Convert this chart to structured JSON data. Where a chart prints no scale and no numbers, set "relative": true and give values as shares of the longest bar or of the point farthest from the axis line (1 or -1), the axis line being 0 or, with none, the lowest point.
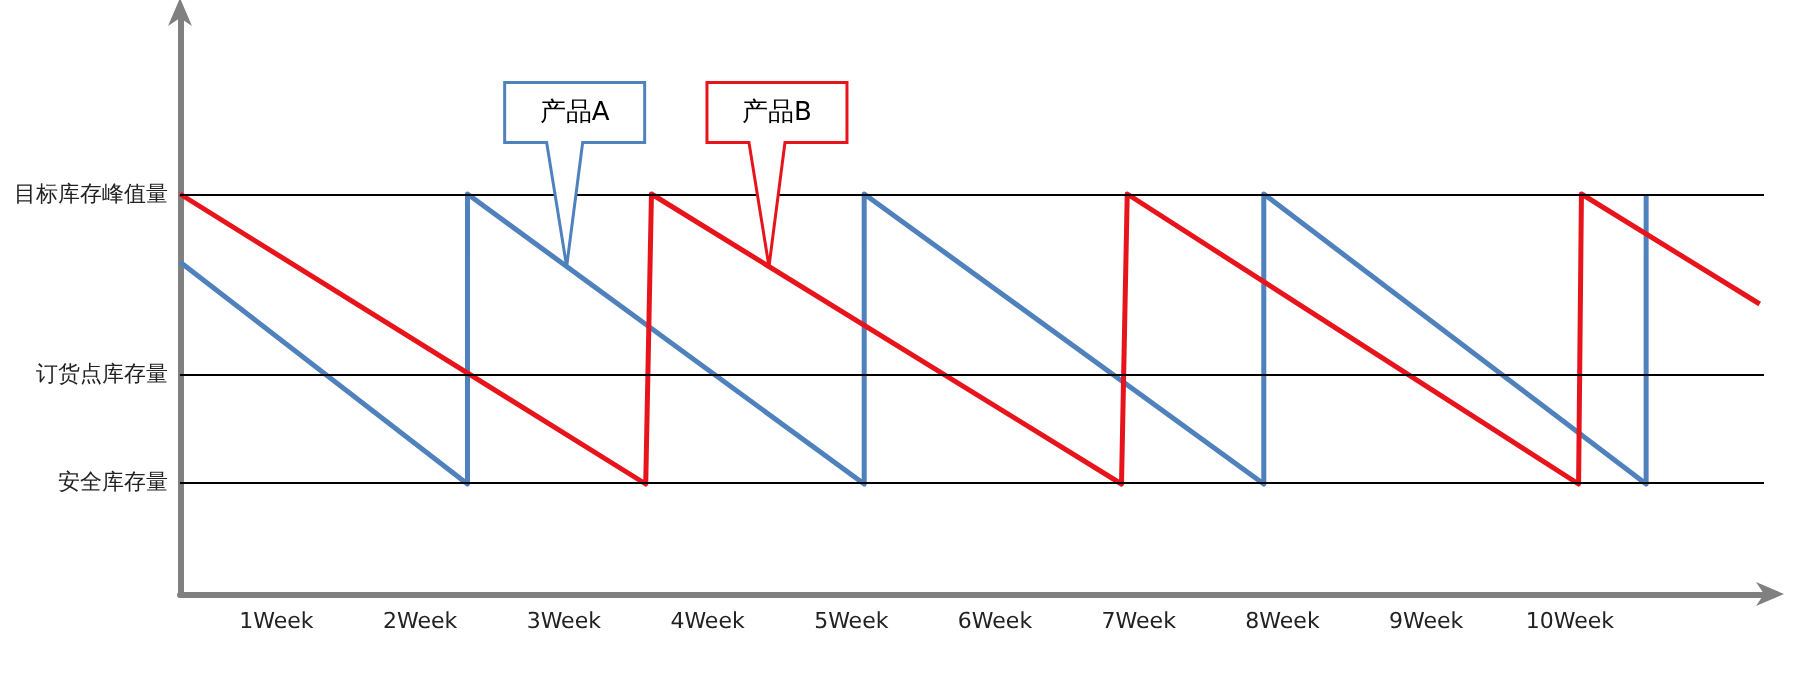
{
  "chart_data": {
    "type": "line",
    "relative": true,
    "marker": "none",
    "grid": false,
    "xlim": [
      0.33,
      11.35
    ],
    "xticks": [
      {
        "value": 1,
        "label": "1Week"
      },
      {
        "value": 2,
        "label": "2Week"
      },
      {
        "value": 3,
        "label": "3Week"
      },
      {
        "value": 4,
        "label": "4Week"
      },
      {
        "value": 5,
        "label": "5Week"
      },
      {
        "value": 6,
        "label": "6Week"
      },
      {
        "value": 7,
        "label": "7Week"
      },
      {
        "value": 8,
        "label": "8Week"
      },
      {
        "value": 9,
        "label": "9Week"
      },
      {
        "value": 10,
        "label": "10Week"
      }
    ],
    "series": [
      {
        "color": "#4f81bd",
        "x": [
          0.33,
          2.33,
          2.33,
          5.09,
          5.09,
          7.87,
          7.87,
          10.53,
          10.53
        ],
        "values": [
          0.83,
          0.275,
          1,
          0.275,
          1,
          0.275,
          1,
          0.275,
          1
        ]
      },
      {
        "color": "#e8141b",
        "x": [
          0.33,
          3.57,
          3.61,
          6.88,
          6.92,
          10.06,
          10.08,
          11.32
        ],
        "values": [
          1,
          0.275,
          1,
          0.275,
          1,
          0.275,
          1,
          0.725
        ]
      }
    ],
    "ref_lines": [
      {
        "axis": "y",
        "value": 1,
        "label": "目标库存峰值量",
        "color": "#000000"
      },
      {
        "axis": "y",
        "value": 0.55,
        "label": "订货点库存量",
        "color": "#000000"
      },
      {
        "axis": "y",
        "value": 0.275,
        "label": "安全库存量",
        "color": "#000000"
      }
    ],
    "annotations": [
      "产品A",
      "产品B"
    ]
  }
}
